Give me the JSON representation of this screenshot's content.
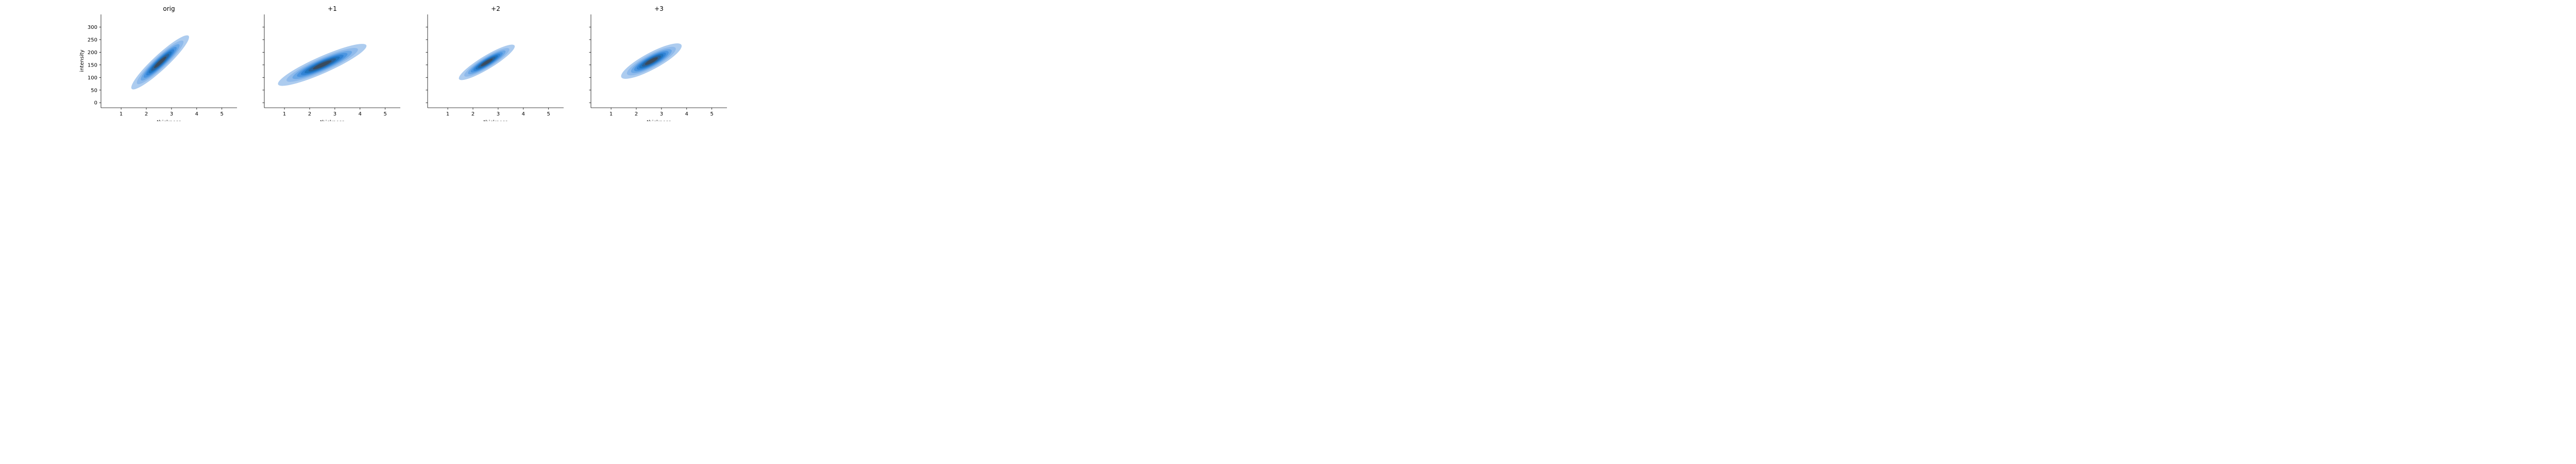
{
  "chart_data": {
    "type": "kde-filled-contour",
    "fill_color": "#1f77b4",
    "dark_color": "#3b4a5a",
    "xlabel": "thickness",
    "ylabel": "intensity",
    "xlim": [
      0.2,
      5.6
    ],
    "ylim": [
      -20,
      350
    ],
    "xticks": [
      1,
      2,
      3,
      4,
      5
    ],
    "yticks": [
      0,
      50,
      100,
      150,
      200,
      250,
      300
    ],
    "shared_y": true,
    "panels": [
      {
        "title": "orig",
        "density": {
          "center": [
            2.55,
            160
          ],
          "std_x": 0.62,
          "std_y": 58,
          "rho": 0.93
        },
        "extent": {
          "x": [
            1.25,
            4.05
          ],
          "y": [
            22,
            303
          ]
        }
      },
      {
        "title": "+1",
        "density": {
          "center": [
            2.5,
            150
          ],
          "std_x": 0.95,
          "std_y": 45,
          "rho": 0.9
        },
        "extent": {
          "x": [
            0.6,
            4.95
          ],
          "y": [
            55,
            275
          ]
        }
      },
      {
        "title": "+2",
        "density": {
          "center": [
            2.55,
            160
          ],
          "std_x": 0.6,
          "std_y": 38,
          "rho": 0.9
        },
        "extent": {
          "x": [
            1.1,
            4.05
          ],
          "y": [
            72,
            262
          ]
        }
      },
      {
        "title": "+3",
        "density": {
          "center": [
            2.6,
            165
          ],
          "std_x": 0.65,
          "std_y": 38,
          "rho": 0.85
        },
        "extent": {
          "x": [
            1.0,
            4.05
          ],
          "y": [
            78,
            265
          ]
        }
      }
    ]
  }
}
